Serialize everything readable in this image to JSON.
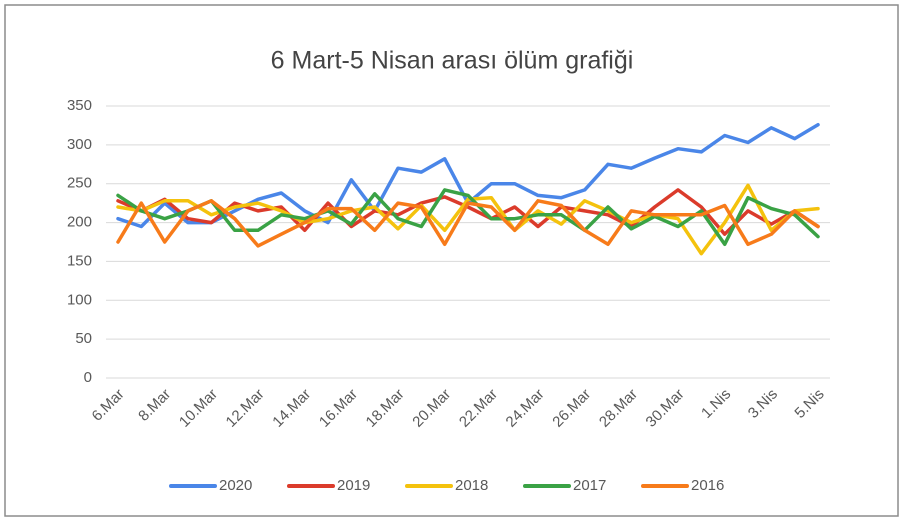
{
  "chart_data": {
    "type": "line",
    "title": "6 Mart-5 Nisan arası ölüm grafiği",
    "categories": [
      "6.Mar",
      null,
      "8.Mar",
      null,
      "10.Mar",
      null,
      "12.Mar",
      null,
      "14.Mar",
      null,
      "16.Mar",
      null,
      "18.Mar",
      null,
      "20.Mar",
      null,
      "22.Mar",
      null,
      "24.Mar",
      null,
      "26.Mar",
      null,
      "28.Mar",
      null,
      "30.Mar",
      null,
      "1.Nis",
      null,
      "3.Nis",
      null,
      "5.Nis"
    ],
    "series": [
      {
        "name": "2020",
        "color": "#4a86e8",
        "values": [
          205,
          195,
          225,
          200,
          200,
          215,
          230,
          238,
          215,
          200,
          255,
          215,
          270,
          265,
          282,
          225,
          250,
          250,
          235,
          232,
          242,
          275,
          270,
          283,
          295,
          291,
          312,
          303,
          322,
          308,
          326
        ]
      },
      {
        "name": "2019",
        "color": "#db3b2b",
        "values": [
          228,
          215,
          230,
          205,
          200,
          225,
          215,
          220,
          190,
          225,
          195,
          215,
          210,
          225,
          233,
          220,
          205,
          220,
          195,
          220,
          215,
          210,
          195,
          220,
          242,
          220,
          185,
          215,
          198,
          215,
          195
        ]
      },
      {
        "name": "2018",
        "color": "#f4c20d",
        "values": [
          220,
          215,
          228,
          228,
          210,
          220,
          225,
          215,
          200,
          205,
          215,
          220,
          192,
          222,
          190,
          230,
          232,
          190,
          215,
          198,
          228,
          215,
          200,
          210,
          205,
          160,
          200,
          248,
          190,
          215,
          218
        ]
      },
      {
        "name": "2017",
        "color": "#3aa245",
        "values": [
          235,
          215,
          205,
          215,
          228,
          190,
          190,
          210,
          205,
          215,
          198,
          237,
          205,
          195,
          242,
          235,
          205,
          205,
          210,
          210,
          190,
          220,
          192,
          208,
          195,
          215,
          172,
          232,
          218,
          210,
          182
        ]
      },
      {
        "name": "2016",
        "color": "#f77b1a",
        "values": [
          175,
          225,
          175,
          215,
          228,
          205,
          170,
          185,
          200,
          218,
          218,
          190,
          225,
          220,
          172,
          225,
          220,
          190,
          228,
          222,
          190,
          172,
          215,
          210,
          210,
          210,
          222,
          172,
          185,
          215,
          195
        ]
      }
    ],
    "ylim": [
      0,
      350
    ],
    "yticks": [
      0,
      50,
      100,
      150,
      200,
      250,
      300,
      350
    ],
    "grid": true
  }
}
